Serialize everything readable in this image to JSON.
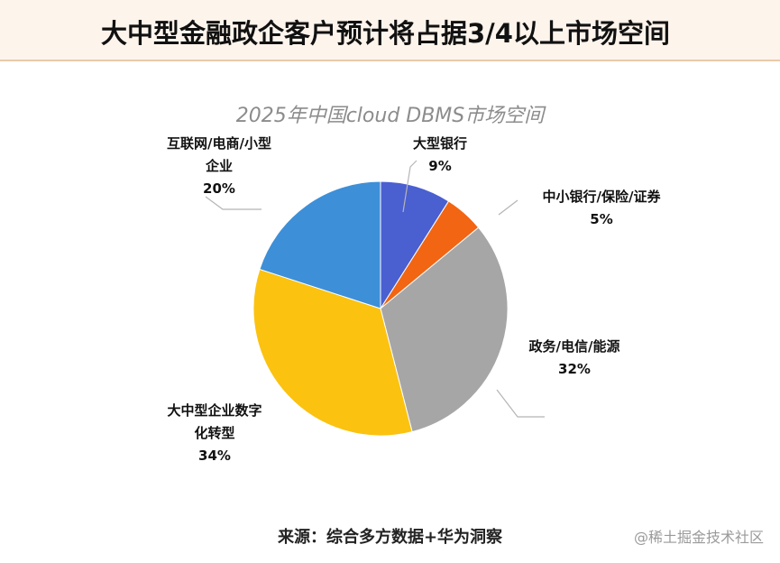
{
  "header": {
    "title": "大中型金融政企客户预计将占据3/4以上市场空间"
  },
  "chart_data": {
    "type": "pie",
    "title": "2025年中国cloud DBMS市场空间",
    "slices": [
      {
        "name": "大型银行",
        "value": 9,
        "display": "9%",
        "color": "#4a5fd0"
      },
      {
        "name": "中小银行/保险/证券",
        "value": 5,
        "display": "5%",
        "color": "#f26513"
      },
      {
        "name": "政务/电信/能源",
        "value": 32,
        "display": "32%",
        "color": "#a6a6a6"
      },
      {
        "name": "大中型企业数字化转型",
        "value": 34,
        "display": "34%",
        "color": "#fbc210"
      },
      {
        "name": "互联网/电商/小型企业",
        "value": 20,
        "display": "20%",
        "color": "#3d8fd8"
      }
    ],
    "labels": [
      {
        "lines": [
          "大型银行",
          "9%"
        ]
      },
      {
        "lines": [
          "中小银行/保险/证券",
          "5%"
        ]
      },
      {
        "lines": [
          "政务/电信/能源",
          "32%"
        ]
      },
      {
        "lines": [
          "大中型企业数字",
          "化转型",
          "34%"
        ]
      },
      {
        "lines": [
          "互联网/电商/小型",
          "企业",
          "20%"
        ]
      }
    ]
  },
  "source": "来源：综合多方数据+华为洞察",
  "watermark": "@稀土掘金技术社区"
}
